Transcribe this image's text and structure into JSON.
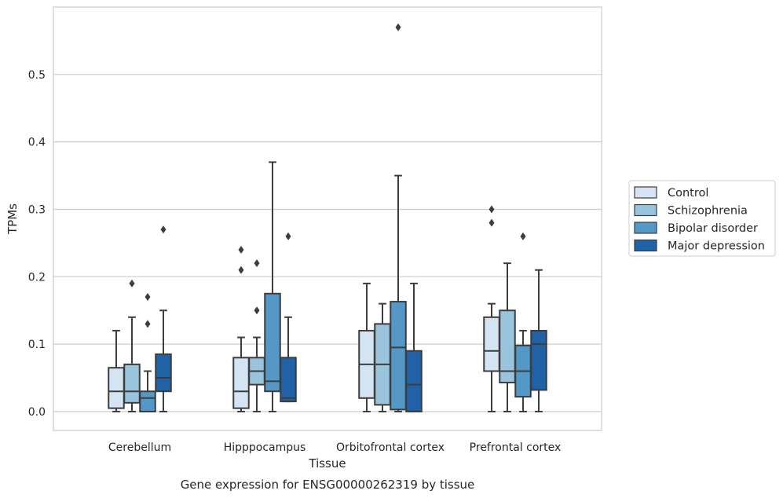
{
  "chart_data": {
    "type": "box",
    "title": "Gene expression for ENSG00000262319 by tissue",
    "xlabel": "Tissue",
    "ylabel": "TPMs",
    "ylim": [
      -0.028,
      0.6
    ],
    "yticks": [
      "0.0",
      "0.1",
      "0.2",
      "0.3",
      "0.4",
      "0.5"
    ],
    "grid": true,
    "legend_position": "right",
    "categories": [
      "Cerebellum",
      "Hipppocampus",
      "Orbitofrontal cortex",
      "Prefrontal cortex"
    ],
    "series": [
      {
        "name": "Control",
        "color": "#d5e4f2",
        "boxes": [
          {
            "whislo": 0.0,
            "q1": 0.005,
            "med": 0.03,
            "q3": 0.065,
            "whishi": 0.12,
            "fliers": []
          },
          {
            "whislo": 0.0,
            "q1": 0.005,
            "med": 0.03,
            "q3": 0.08,
            "whishi": 0.11,
            "fliers": [
              0.21,
              0.24
            ]
          },
          {
            "whislo": 0.0,
            "q1": 0.02,
            "med": 0.07,
            "q3": 0.12,
            "whishi": 0.19,
            "fliers": []
          },
          {
            "whislo": 0.0,
            "q1": 0.06,
            "med": 0.09,
            "q3": 0.14,
            "whishi": 0.16,
            "fliers": [
              0.28,
              0.3
            ]
          }
        ]
      },
      {
        "name": "Schizophrenia",
        "color": "#9ac4dd",
        "boxes": [
          {
            "whislo": 0.0,
            "q1": 0.013,
            "med": 0.03,
            "q3": 0.07,
            "whishi": 0.14,
            "fliers": [
              0.19
            ]
          },
          {
            "whislo": 0.0,
            "q1": 0.04,
            "med": 0.06,
            "q3": 0.08,
            "whishi": 0.11,
            "fliers": [
              0.15,
              0.22
            ]
          },
          {
            "whislo": 0.0,
            "q1": 0.01,
            "med": 0.07,
            "q3": 0.13,
            "whishi": 0.16,
            "fliers": []
          },
          {
            "whislo": 0.0,
            "q1": 0.043,
            "med": 0.06,
            "q3": 0.15,
            "whishi": 0.22,
            "fliers": []
          }
        ]
      },
      {
        "name": "Bipolar disorder",
        "color": "#5398c6",
        "boxes": [
          {
            "whislo": 0.0,
            "q1": 0.0,
            "med": 0.02,
            "q3": 0.03,
            "whishi": 0.06,
            "fliers": [
              0.13,
              0.17
            ]
          },
          {
            "whislo": 0.0,
            "q1": 0.03,
            "med": 0.045,
            "q3": 0.175,
            "whishi": 0.37,
            "fliers": []
          },
          {
            "whislo": 0.0,
            "q1": 0.003,
            "med": 0.095,
            "q3": 0.163,
            "whishi": 0.35,
            "fliers": [
              0.57
            ]
          },
          {
            "whislo": 0.0,
            "q1": 0.022,
            "med": 0.06,
            "q3": 0.098,
            "whishi": 0.12,
            "fliers": [
              0.26
            ]
          }
        ]
      },
      {
        "name": "Major depression",
        "color": "#1f62a6",
        "boxes": [
          {
            "whislo": 0.0,
            "q1": 0.03,
            "med": 0.05,
            "q3": 0.085,
            "whishi": 0.15,
            "fliers": [
              0.27
            ]
          },
          {
            "whislo": 0.015,
            "q1": 0.015,
            "med": 0.02,
            "q3": 0.08,
            "whishi": 0.14,
            "fliers": [
              0.26
            ]
          },
          {
            "whislo": 0.0,
            "q1": 0.0,
            "med": 0.04,
            "q3": 0.09,
            "whishi": 0.19,
            "fliers": []
          },
          {
            "whislo": 0.0,
            "q1": 0.032,
            "med": 0.1,
            "q3": 0.12,
            "whishi": 0.21,
            "fliers": []
          }
        ]
      }
    ]
  }
}
